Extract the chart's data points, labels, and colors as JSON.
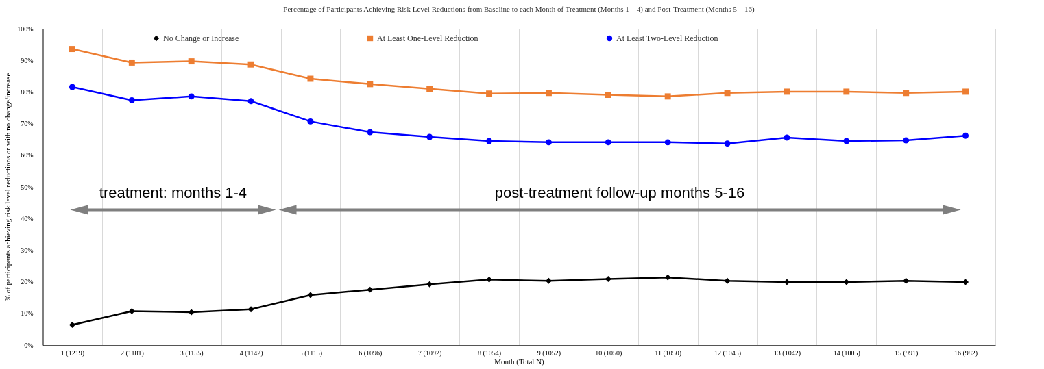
{
  "chart_data": {
    "type": "line",
    "title": "Percentage of Participants Achieving Risk Level Reductions from Baseline to each Month of Treatment (Months 1 – 4) and Post-Treatment (Months 5 – 16)",
    "xlabel": "Month (Total N)",
    "ylabel": "% of participants achieving risk level reductions or with no change/increase",
    "categories": [
      "1 (1219)",
      "2 (1181)",
      "3 (1155)",
      "4 (1142)",
      "5 (1115)",
      "6 (1096)",
      "7 (1092)",
      "8 (1054)",
      "9 (1052)",
      "10 (1050)",
      "11 (1050)",
      "12 (1043)",
      "13 (1042)",
      "14 (1005)",
      "15 (991)",
      "16 (982)"
    ],
    "series": [
      {
        "name": "No Change or Increase",
        "color": "#000000",
        "marker": "diamond",
        "values": [
          6.4,
          10.7,
          10.4,
          11.3,
          15.8,
          17.5,
          19.2,
          20.7,
          20.3,
          20.9,
          21.4,
          20.3,
          19.9,
          19.9,
          20.3,
          19.9
        ]
      },
      {
        "name": "At Least One-Level Reduction",
        "color": "#ed7d31",
        "marker": "square",
        "values": [
          93.6,
          89.3,
          89.7,
          88.7,
          84.2,
          82.5,
          81.0,
          79.5,
          79.7,
          79.1,
          78.6,
          79.7,
          80.1,
          80.1,
          79.7,
          80.1
        ]
      },
      {
        "name": "At Least Two-Level Reduction",
        "color": "#0000ff",
        "marker": "circle",
        "values": [
          81.6,
          77.4,
          78.6,
          77.1,
          70.7,
          67.3,
          65.8,
          64.5,
          64.1,
          64.1,
          64.1,
          63.7,
          65.6,
          64.5,
          64.7,
          66.2
        ]
      }
    ],
    "ylim": [
      0,
      100
    ],
    "yticks": [
      {
        "value": 0,
        "label": "0%"
      },
      {
        "value": 10,
        "label": "10%"
      },
      {
        "value": 20,
        "label": "20%"
      },
      {
        "value": 30,
        "label": "30%"
      },
      {
        "value": 40,
        "label": "40%"
      },
      {
        "value": 50,
        "label": "50%"
      },
      {
        "value": 60,
        "label": "60%"
      },
      {
        "value": 70,
        "label": "70%"
      },
      {
        "value": 80,
        "label": "80%"
      },
      {
        "value": 90,
        "label": "90%"
      },
      {
        "value": 100,
        "label": "100%"
      }
    ],
    "grid": "x",
    "legend": "top",
    "line_style": "solid",
    "annotations": [
      "treatment: months 1-4",
      "post-treatment follow-up months 5-16"
    ]
  }
}
